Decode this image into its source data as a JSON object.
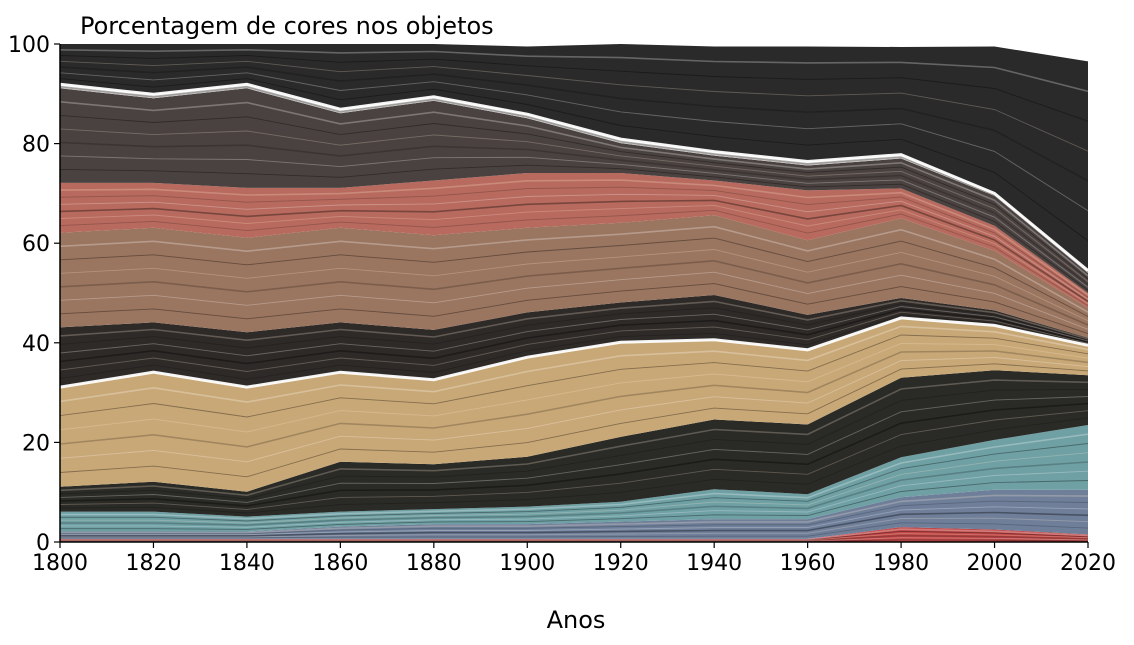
{
  "chart_data": {
    "type": "area",
    "title": "Porcentagem de cores nos objetos",
    "xlabel": "Anos",
    "ylabel": "",
    "x": [
      1800,
      1820,
      1840,
      1860,
      1880,
      1900,
      1920,
      1940,
      1960,
      1980,
      2000,
      2020
    ],
    "xlim": [
      1800,
      2020
    ],
    "ylim": [
      0,
      100
    ],
    "xticks": [
      "1800",
      "1820",
      "1840",
      "1860",
      "1880",
      "1900",
      "1920",
      "1940",
      "1960",
      "1980",
      "2000",
      "2020"
    ],
    "yticks": [
      "0",
      "20",
      "40",
      "60",
      "80",
      "100"
    ],
    "grid": false,
    "stacked": true,
    "series": [
      {
        "color": "#c04848",
        "values": [
          0.6,
          0.6,
          0.6,
          0.6,
          0.6,
          0.6,
          0.6,
          0.6,
          0.6,
          3,
          2.5,
          1.5
        ]
      },
      {
        "color": "#6f7f9a",
        "values": [
          1.5,
          1.5,
          1.5,
          2.5,
          3,
          3,
          3.5,
          4,
          4,
          6,
          8,
          9
        ]
      },
      {
        "color": "#6fa0a4",
        "values": [
          4,
          4,
          3,
          3,
          3,
          3.5,
          4,
          6,
          5,
          8,
          10,
          13
        ]
      },
      {
        "color": "#2a2a26",
        "values": [
          5,
          6,
          5,
          10,
          9,
          10,
          13,
          14,
          14,
          16,
          14,
          10
        ]
      },
      {
        "color": "#c9a877",
        "values": [
          20,
          22,
          21,
          18,
          17,
          20,
          19,
          16,
          15,
          12,
          9,
          6
        ]
      },
      {
        "color": "#2e2a28",
        "values": [
          12,
          10,
          11,
          10,
          10,
          9,
          8,
          9,
          7,
          4,
          3,
          1.5
        ]
      },
      {
        "color": "#9a7560",
        "values": [
          19,
          19,
          19,
          19,
          19,
          17,
          16,
          16,
          15,
          16,
          12,
          6
        ]
      },
      {
        "color": "#b86a5e",
        "values": [
          10,
          9,
          10,
          8,
          11,
          11,
          10,
          7,
          10,
          6,
          5,
          3
        ]
      },
      {
        "color": "#4a4240",
        "values": [
          19,
          17,
          20,
          15,
          16,
          11,
          6,
          5,
          5,
          6,
          6,
          4
        ]
      },
      {
        "color": "#e8e8e8",
        "values": [
          0.8,
          0.8,
          0.8,
          0.8,
          0.8,
          0.8,
          0.8,
          0.8,
          0.8,
          0.8,
          0.5,
          0.5
        ]
      },
      {
        "color": "#2a2a2a",
        "values": [
          8.1,
          10.1,
          8.1,
          13.2,
          10.6,
          13.6,
          19.1,
          21.1,
          23.1,
          21.6,
          29.5,
          42
        ]
      }
    ]
  }
}
